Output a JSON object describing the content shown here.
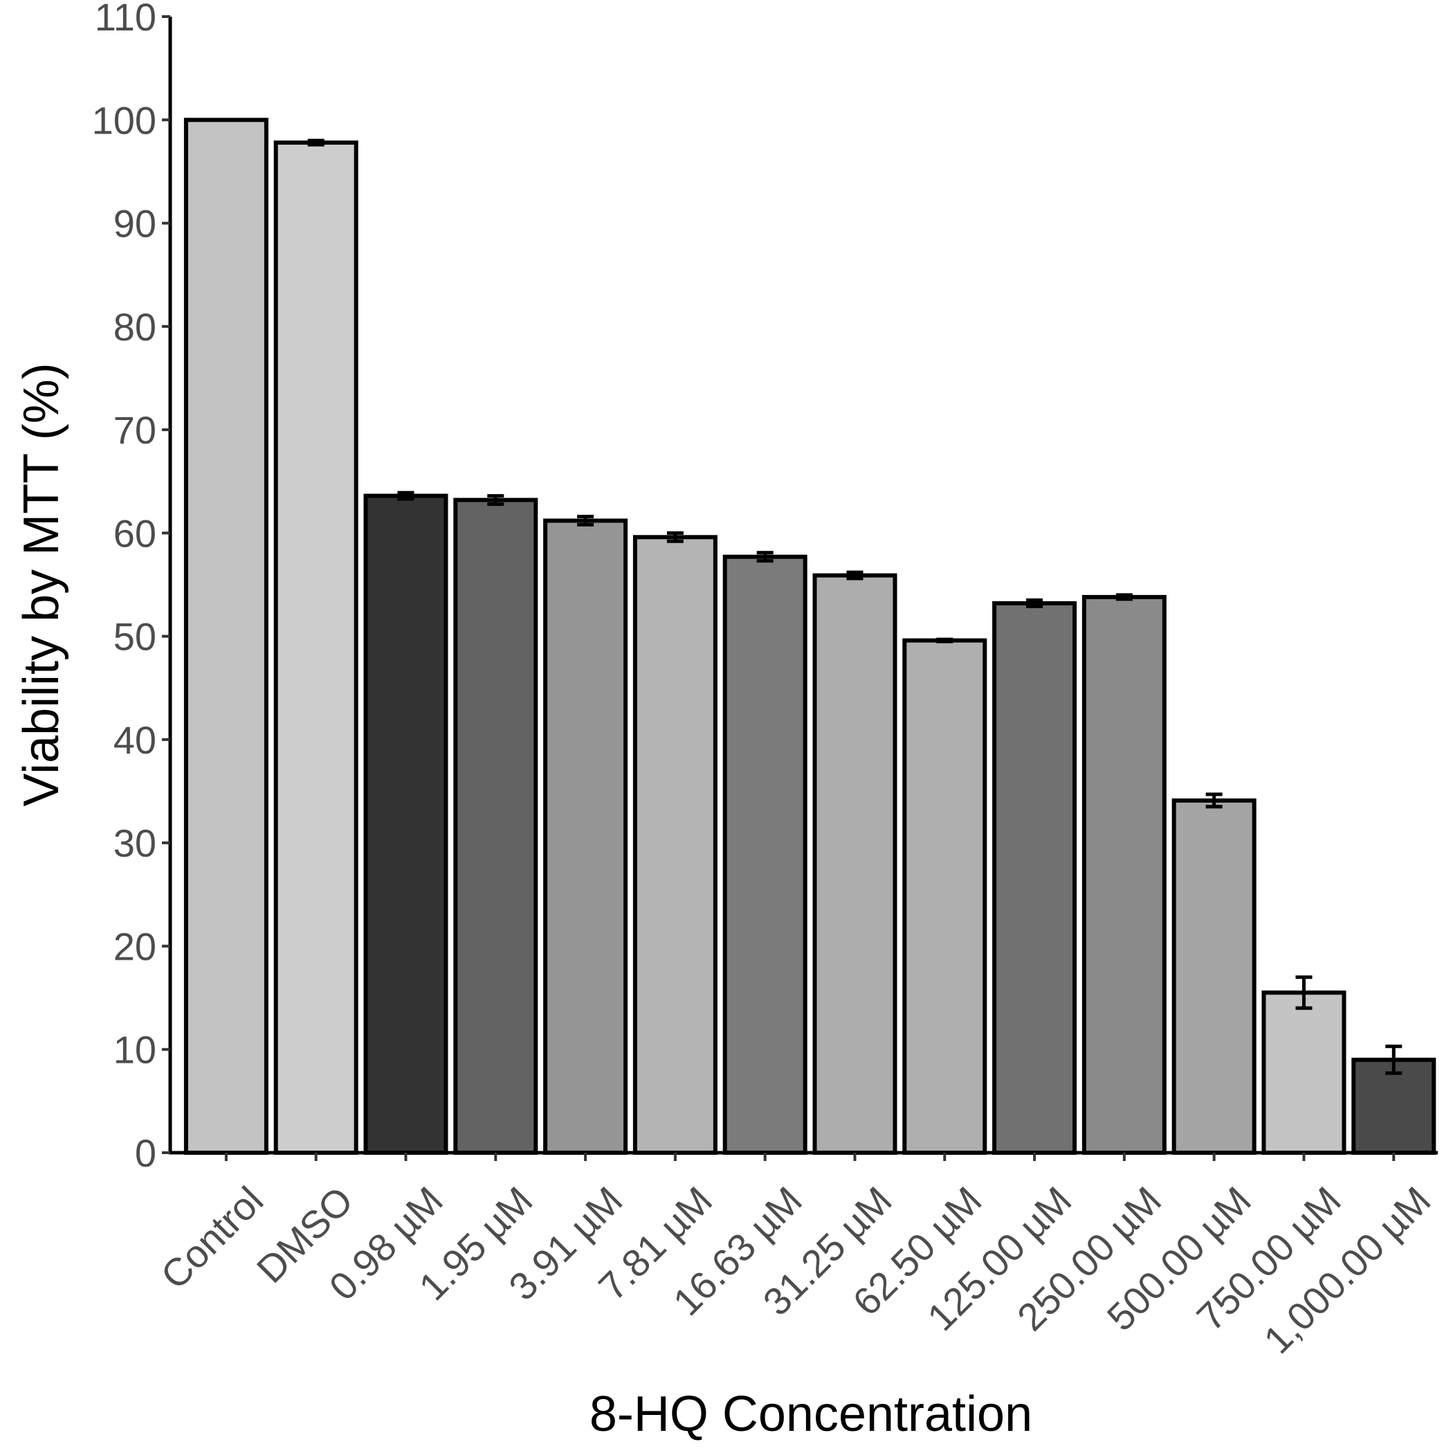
{
  "chart_data": {
    "type": "bar",
    "title": "",
    "xlabel": "8-HQ Concentration",
    "ylabel": "Viability by MTT (%)",
    "ylim": [
      0,
      110
    ],
    "yticks": [
      0,
      10,
      20,
      30,
      40,
      50,
      60,
      70,
      80,
      90,
      100,
      110
    ],
    "grid": false,
    "legend": "none",
    "categories": [
      "Control",
      "DMSO",
      "0.98 µM",
      "1.95 µM",
      "3.91 µM",
      "7.81 µM",
      "16.63 µM",
      "31.25 µM",
      "62.50 µM",
      "125.00 µM",
      "250.00 µM",
      "500.00 µM",
      "750.00 µM",
      "1,000.00 µM"
    ],
    "values": [
      100.0,
      97.8,
      63.6,
      63.2,
      61.2,
      59.6,
      57.7,
      55.9,
      49.6,
      53.2,
      53.8,
      34.1,
      15.5,
      9.0
    ],
    "errors": [
      0.0,
      0.2,
      0.3,
      0.4,
      0.4,
      0.4,
      0.4,
      0.3,
      0.1,
      0.3,
      0.2,
      0.6,
      1.5,
      1.3
    ],
    "bar_colors": [
      "#c3c3c3",
      "#cdcdcd",
      "#333333",
      "#636363",
      "#959595",
      "#b4b4b4",
      "#7b7b7b",
      "#adadad",
      "#afafaf",
      "#717171",
      "#8a8a8a",
      "#a4a4a4",
      "#c4c4c4",
      "#4a4a4a"
    ],
    "bar_edge_color": "#000000"
  }
}
